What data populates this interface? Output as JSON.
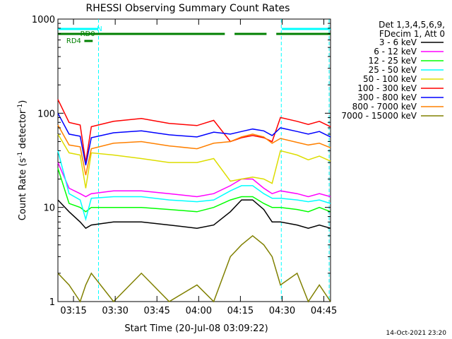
{
  "chart_data": {
    "type": "line",
    "title": "RHESSI Observing Summary Count Rates",
    "xlabel": "Start Time (20-Jul-08 03:09:22)",
    "ylabel_main": "Count Rate (s",
    "ylabel_sup": "-1",
    "ylabel_mid": " detector",
    "ylabel_sup2": "-1",
    "ylabel_end": ")",
    "y_scale": "log",
    "ylim": [
      1,
      1000
    ],
    "xlim_minutes": [
      0,
      98
    ],
    "x_ticks": [
      {
        "label": "03:15",
        "minutes": 5.6
      },
      {
        "label": "03:30",
        "minutes": 20.6
      },
      {
        "label": "03:45",
        "minutes": 35.6
      },
      {
        "label": "04:00",
        "minutes": 50.6
      },
      {
        "label": "04:15",
        "minutes": 65.6
      },
      {
        "label": "04:30",
        "minutes": 80.6
      },
      {
        "label": "04:45",
        "minutes": 95.6
      }
    ],
    "y_ticks": [
      {
        "label": "1000",
        "value": 1000
      },
      {
        "label": "100",
        "value": 100
      },
      {
        "label": "10",
        "value": 10
      },
      {
        "label": "1",
        "value": 1
      }
    ],
    "header_lines": [
      "Det 1,3,4,5,6,9,",
      "FDecim 1, Att 0"
    ],
    "series": [
      {
        "name": "3 - 6 keV",
        "color": "#000000",
        "x": [
          0,
          4,
          8,
          10,
          12,
          20,
          30,
          40,
          50,
          56,
          62,
          66,
          70,
          74,
          77,
          80,
          86,
          90,
          94,
          98
        ],
        "y": [
          12,
          9,
          7,
          6,
          6.5,
          7,
          7,
          6.5,
          6,
          6.5,
          9,
          12,
          12,
          9.5,
          7,
          7,
          6.5,
          6,
          6.5,
          6
        ]
      },
      {
        "name": "6 - 12 keV",
        "color": "#ff00ff",
        "x": [
          0,
          4,
          8,
          10,
          12,
          20,
          30,
          40,
          50,
          56,
          62,
          66,
          70,
          74,
          77,
          80,
          86,
          90,
          94,
          98
        ],
        "y": [
          30,
          16,
          14,
          13,
          14,
          15,
          15,
          14,
          13,
          14,
          17,
          20,
          20,
          16,
          14,
          15,
          14,
          13,
          14,
          13
        ]
      },
      {
        "name": "12 - 25 keV",
        "color": "#00ff00",
        "x": [
          0,
          4,
          8,
          10,
          12,
          20,
          30,
          40,
          50,
          56,
          62,
          66,
          70,
          74,
          77,
          80,
          86,
          90,
          94,
          98
        ],
        "y": [
          26,
          11,
          10,
          9,
          10,
          10,
          10,
          9.5,
          9,
          10,
          12,
          13,
          13,
          11,
          10,
          10,
          9.5,
          9,
          10,
          9
        ]
      },
      {
        "name": "25 - 50 keV",
        "color": "#00ffff",
        "x": [
          0,
          4,
          8,
          10,
          12,
          20,
          30,
          40,
          50,
          56,
          62,
          66,
          70,
          74,
          77,
          80,
          86,
          90,
          94,
          98
        ],
        "y": [
          40,
          14,
          12,
          7.5,
          12.5,
          13,
          13,
          12,
          11.5,
          12,
          15,
          17,
          17,
          14,
          12.5,
          12.5,
          12,
          11.5,
          12,
          11
        ]
      },
      {
        "name": "50 - 100 keV",
        "color": "#dddd00",
        "x": [
          0,
          4,
          8,
          10,
          12,
          20,
          30,
          40,
          50,
          56,
          62,
          66,
          70,
          74,
          77,
          80,
          86,
          90,
          94,
          98
        ],
        "y": [
          60,
          38,
          36,
          16,
          38,
          36,
          33,
          30,
          30,
          33,
          19,
          20,
          21,
          20,
          18,
          40,
          36,
          32,
          35,
          31
        ]
      },
      {
        "name": "100 - 300 keV",
        "color": "#ff0000",
        "x": [
          0,
          4,
          8,
          10,
          12,
          20,
          30,
          40,
          50,
          56,
          62,
          66,
          70,
          74,
          77,
          80,
          86,
          90,
          94,
          98
        ],
        "y": [
          140,
          80,
          75,
          30,
          72,
          82,
          88,
          78,
          74,
          84,
          50,
          55,
          58,
          55,
          50,
          90,
          82,
          76,
          82,
          72
        ]
      },
      {
        "name": "300 - 800 keV",
        "color": "#0000ff",
        "x": [
          0,
          4,
          8,
          10,
          12,
          20,
          30,
          40,
          50,
          56,
          62,
          66,
          70,
          74,
          77,
          80,
          86,
          90,
          94,
          98
        ],
        "y": [
          100,
          60,
          57,
          28,
          55,
          62,
          65,
          59,
          56,
          63,
          60,
          64,
          68,
          65,
          58,
          70,
          64,
          60,
          64,
          56
        ]
      },
      {
        "name": "800 - 7000 keV",
        "color": "#ff8000",
        "x": [
          0,
          4,
          8,
          10,
          12,
          20,
          30,
          40,
          50,
          56,
          62,
          66,
          70,
          74,
          77,
          80,
          86,
          90,
          94,
          98
        ],
        "y": [
          75,
          46,
          44,
          22,
          42,
          48,
          50,
          45,
          42,
          48,
          50,
          56,
          60,
          56,
          48,
          54,
          49,
          46,
          48,
          43
        ]
      },
      {
        "name": "7000 - 15000 keV",
        "color": "#808000",
        "x": [
          0,
          4,
          8,
          10,
          12,
          20,
          30,
          40,
          50,
          56,
          62,
          66,
          70,
          74,
          77,
          80,
          86,
          90,
          94,
          98
        ],
        "y": [
          2,
          1.5,
          1,
          1.5,
          2,
          1,
          2,
          1,
          1.5,
          1,
          3,
          4,
          5,
          4,
          3,
          1.5,
          2,
          1,
          1.5,
          1
        ]
      }
    ],
    "attenuator_bars": [
      {
        "label": "N",
        "color": "#00ffff",
        "segments": [
          [
            0,
            14.5
          ],
          [
            80.5,
            98
          ]
        ]
      },
      {
        "label": "RD0",
        "color": "#008000",
        "segments": [
          [
            0,
            60
          ],
          [
            63.5,
            75
          ],
          [
            78.5,
            98
          ]
        ]
      },
      {
        "label": "RD4",
        "color": "#008000",
        "segments": [
          [
            9.5,
            12.5
          ]
        ]
      }
    ],
    "vlines_minutes": [
      14.6,
      80.3,
      97.5
    ],
    "vline_color": "#00ffff",
    "legend_placement": "right",
    "grid": false
  },
  "footnote": "14-Oct-2021 23:20"
}
